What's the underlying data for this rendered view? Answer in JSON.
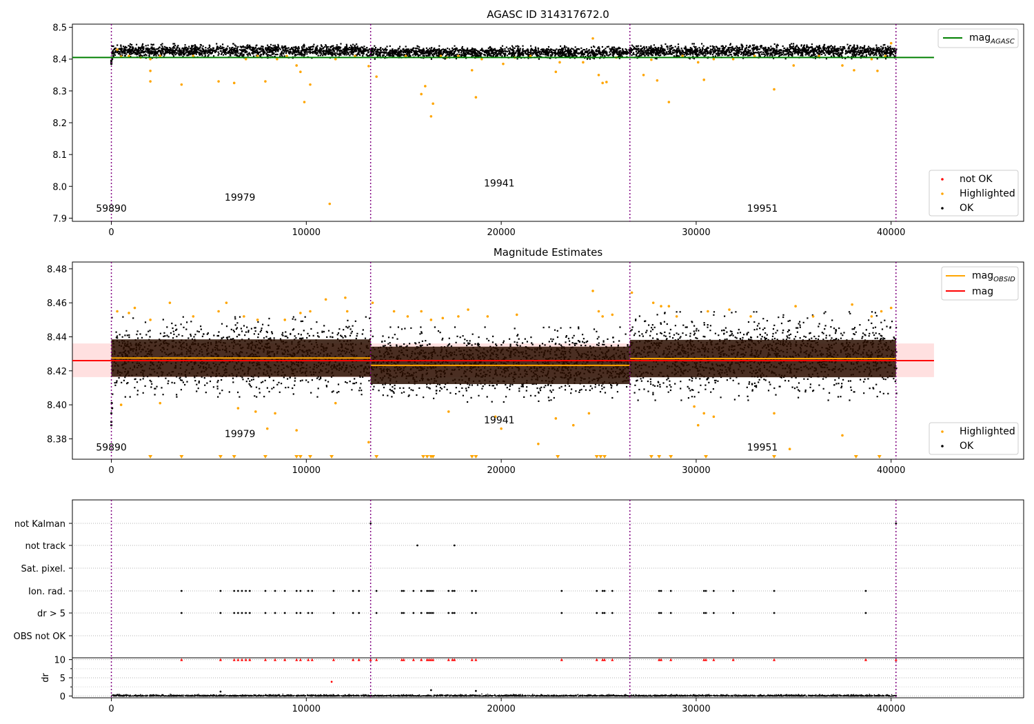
{
  "figure": {
    "background": "#ffffff"
  },
  "chart_data": [
    {
      "type": "scatter",
      "title": "AGASC ID 314317672.0",
      "xlabel": "",
      "ylabel": "",
      "xlim": [
        -2000,
        46800
      ],
      "ylim": [
        7.89,
        8.51
      ],
      "xticks": [
        0,
        10000,
        20000,
        30000,
        40000
      ],
      "yticks": [
        7.9,
        8.0,
        8.1,
        8.2,
        8.3,
        8.4,
        8.5
      ],
      "obsid_boundaries": [
        0,
        13300,
        26600,
        40250
      ],
      "obsid_labels": [
        {
          "x": 0,
          "y": 7.92,
          "text": "59890"
        },
        {
          "x": 6600,
          "y": 7.955,
          "text": "19979"
        },
        {
          "x": 19900,
          "y": 8.0,
          "text": "19941"
        },
        {
          "x": 33400,
          "y": 7.92,
          "text": "19951"
        }
      ],
      "lines": [
        {
          "name": "mag",
          "sub": "AGASC",
          "y": 8.405,
          "x": [
            -2000,
            42200
          ],
          "color": "#008000"
        }
      ],
      "bands": [
        {
          "x": [
            0,
            13300
          ],
          "y": [
            8.405,
            8.45
          ]
        },
        {
          "x": [
            13300,
            26600
          ],
          "y": [
            8.402,
            8.443
          ]
        },
        {
          "x": [
            26600,
            40250
          ],
          "y": [
            8.403,
            8.45
          ]
        }
      ],
      "highlighted_points": [
        [
          300,
          8.43
        ],
        [
          500,
          8.408
        ],
        [
          900,
          8.41
        ],
        [
          1500,
          8.405
        ],
        [
          2000,
          8.4
        ],
        [
          2000,
          8.33
        ],
        [
          2000,
          8.363
        ],
        [
          2500,
          8.41
        ],
        [
          3600,
          8.32
        ],
        [
          4200,
          8.41
        ],
        [
          5500,
          8.33
        ],
        [
          6300,
          8.325
        ],
        [
          6900,
          8.4
        ],
        [
          7500,
          8.41
        ],
        [
          7900,
          8.33
        ],
        [
          8500,
          8.4
        ],
        [
          9000,
          8.41
        ],
        [
          9500,
          8.38
        ],
        [
          9700,
          8.36
        ],
        [
          9900,
          8.265
        ],
        [
          10200,
          8.32
        ],
        [
          11200,
          7.945
        ],
        [
          11500,
          8.4
        ],
        [
          12500,
          8.41
        ],
        [
          13200,
          8.378
        ],
        [
          13600,
          8.345
        ],
        [
          15100,
          8.41
        ],
        [
          15900,
          8.29
        ],
        [
          16100,
          8.315
        ],
        [
          16400,
          8.22
        ],
        [
          16500,
          8.26
        ],
        [
          16900,
          8.41
        ],
        [
          17200,
          8.405
        ],
        [
          17800,
          8.41
        ],
        [
          18500,
          8.365
        ],
        [
          18700,
          8.28
        ],
        [
          19000,
          8.4
        ],
        [
          20100,
          8.385
        ],
        [
          20700,
          8.405
        ],
        [
          21500,
          8.41
        ],
        [
          22800,
          8.36
        ],
        [
          23000,
          8.39
        ],
        [
          24200,
          8.39
        ],
        [
          24700,
          8.465
        ],
        [
          25000,
          8.35
        ],
        [
          25200,
          8.325
        ],
        [
          25400,
          8.328
        ],
        [
          25900,
          8.405
        ],
        [
          27300,
          8.35
        ],
        [
          27700,
          8.398
        ],
        [
          28000,
          8.333
        ],
        [
          28600,
          8.265
        ],
        [
          29300,
          8.41
        ],
        [
          30100,
          8.39
        ],
        [
          30400,
          8.335
        ],
        [
          30900,
          8.4
        ],
        [
          31900,
          8.4
        ],
        [
          33000,
          8.41
        ],
        [
          34000,
          8.305
        ],
        [
          35000,
          8.38
        ],
        [
          36300,
          8.41
        ],
        [
          37500,
          8.38
        ],
        [
          38100,
          8.365
        ],
        [
          39000,
          8.4
        ],
        [
          39300,
          8.363
        ],
        [
          39700,
          8.41
        ],
        [
          40000,
          8.45
        ]
      ],
      "legend": [
        {
          "label": "not OK",
          "color": "#ff0000",
          "marker": "point"
        },
        {
          "label": "Highlighted",
          "color": "#ffa500",
          "marker": "point"
        },
        {
          "label": "OK",
          "color": "#000000",
          "marker": "point"
        }
      ]
    },
    {
      "type": "scatter",
      "title": "Magnitude Estimates",
      "xlabel": "",
      "ylabel": "",
      "xlim": [
        -2000,
        46800
      ],
      "ylim": [
        8.368,
        8.484
      ],
      "xticks": [
        0,
        10000,
        20000,
        30000,
        40000
      ],
      "yticks": [
        8.38,
        8.4,
        8.42,
        8.44,
        8.46,
        8.48
      ],
      "obsid_boundaries": [
        0,
        13300,
        26600,
        40250
      ],
      "obsid_labels": [
        {
          "x": 0,
          "y": 8.373,
          "text": "59890"
        },
        {
          "x": 6600,
          "y": 8.381,
          "text": "19979"
        },
        {
          "x": 19900,
          "y": 8.389,
          "text": "19941"
        },
        {
          "x": 33400,
          "y": 8.373,
          "text": "19951"
        }
      ],
      "overall_mag": {
        "name": "mag",
        "y": 8.426,
        "band": [
          8.4163,
          8.4361
        ],
        "x": [
          -2000,
          42200
        ],
        "color": "#ff0000"
      },
      "obsid_mag": {
        "name": "mag",
        "sub": "OBSID",
        "color": "#ffa500",
        "segments": [
          {
            "x": [
              0,
              13300
            ],
            "y": 8.4275
          },
          {
            "x": [
              13300,
              26600
            ],
            "y": 8.4232
          },
          {
            "x": [
              26600,
              40250
            ],
            "y": 8.4272
          }
        ]
      },
      "bands": [
        {
          "x": [
            0,
            13300
          ],
          "y": [
            8.405,
            8.452
          ]
        },
        {
          "x": [
            13300,
            26600
          ],
          "y": [
            8.402,
            8.446
          ]
        },
        {
          "x": [
            26600,
            40250
          ],
          "y": [
            8.403,
            8.455
          ]
        }
      ],
      "highlighted_points": [
        [
          300,
          8.455
        ],
        [
          500,
          8.4
        ],
        [
          900,
          8.454
        ],
        [
          1200,
          8.457
        ],
        [
          2000,
          8.45
        ],
        [
          2500,
          8.401
        ],
        [
          3000,
          8.46
        ],
        [
          4200,
          8.452
        ],
        [
          5500,
          8.455
        ],
        [
          5900,
          8.46
        ],
        [
          6500,
          8.398
        ],
        [
          6800,
          8.452
        ],
        [
          7400,
          8.396
        ],
        [
          7500,
          8.45
        ],
        [
          8000,
          8.386
        ],
        [
          8400,
          8.395
        ],
        [
          8900,
          8.45
        ],
        [
          9500,
          8.385
        ],
        [
          9700,
          8.454
        ],
        [
          10200,
          8.455
        ],
        [
          11000,
          8.462
        ],
        [
          11500,
          8.401
        ],
        [
          12000,
          8.463
        ],
        [
          12100,
          8.455
        ],
        [
          13200,
          8.378
        ],
        [
          13400,
          8.46
        ],
        [
          14500,
          8.455
        ],
        [
          15200,
          8.452
        ],
        [
          15900,
          8.455
        ],
        [
          16400,
          8.45
        ],
        [
          17000,
          8.451
        ],
        [
          17800,
          8.452
        ],
        [
          17300,
          8.396
        ],
        [
          18300,
          8.456
        ],
        [
          19300,
          8.452
        ],
        [
          19700,
          8.393
        ],
        [
          20000,
          8.386
        ],
        [
          20800,
          8.453
        ],
        [
          21900,
          8.377
        ],
        [
          22800,
          8.392
        ],
        [
          23700,
          8.388
        ],
        [
          24500,
          8.395
        ],
        [
          24700,
          8.467
        ],
        [
          25000,
          8.455
        ],
        [
          25200,
          8.452
        ],
        [
          25700,
          8.453
        ],
        [
          26700,
          8.466
        ],
        [
          27800,
          8.46
        ],
        [
          28200,
          8.458
        ],
        [
          28600,
          8.458
        ],
        [
          29000,
          8.452
        ],
        [
          29900,
          8.399
        ],
        [
          30100,
          8.388
        ],
        [
          30400,
          8.395
        ],
        [
          30600,
          8.455
        ],
        [
          30900,
          8.393
        ],
        [
          31700,
          8.456
        ],
        [
          32800,
          8.452
        ],
        [
          34000,
          8.395
        ],
        [
          34800,
          8.374
        ],
        [
          35100,
          8.458
        ],
        [
          36000,
          8.452
        ],
        [
          37500,
          8.382
        ],
        [
          38000,
          8.459
        ],
        [
          39000,
          8.452
        ],
        [
          39500,
          8.455
        ],
        [
          40000,
          8.457
        ]
      ],
      "lower_limit_markers": [
        2000,
        3600,
        5600,
        6300,
        7900,
        9500,
        9700,
        10200,
        11300,
        13600,
        16000,
        16200,
        16400,
        16500,
        18500,
        18700,
        22900,
        24900,
        25100,
        25300,
        27700,
        28100,
        28700,
        30500,
        34000,
        38200,
        39400
      ],
      "legend": [
        {
          "label": "Highlighted",
          "color": "#ffa500",
          "marker": "point"
        },
        {
          "label": "OK",
          "color": "#000000",
          "marker": "point"
        }
      ]
    },
    {
      "type": "scatter",
      "title": "",
      "xlabel": "",
      "ylabel": "",
      "xlim": [
        -2000,
        46800
      ],
      "categories": [
        "not Kalman",
        "not track",
        "Sat. pixel.",
        "Ion. rad.",
        "dr > 5",
        "OBS not OK"
      ],
      "obsid_boundaries": [
        0,
        13300,
        26600,
        40250
      ],
      "flags": {
        "not Kalman": [
          13300,
          40250
        ],
        "not track": [
          15700,
          17600
        ],
        "Sat. pixel.": [],
        "Ion. rad.": [
          3600,
          5600,
          6300,
          6500,
          6700,
          6900,
          7100,
          7900,
          8400,
          8900,
          9500,
          9700,
          10100,
          10300,
          11400,
          12400,
          12700,
          13600,
          14900,
          15000,
          15500,
          15900,
          16200,
          16300,
          16400,
          16500,
          17300,
          17500,
          17600,
          18500,
          18700,
          23100,
          24900,
          25200,
          25300,
          25700,
          28100,
          28200,
          28700,
          30400,
          30500,
          30900,
          31900,
          34000,
          38700
        ],
        "dr > 5": [
          3600,
          5600,
          6300,
          6500,
          6700,
          6900,
          7100,
          7900,
          8400,
          8900,
          9500,
          9700,
          10100,
          10300,
          11400,
          12400,
          12700,
          13600,
          14900,
          15000,
          15500,
          15900,
          16200,
          16300,
          16400,
          16500,
          17300,
          17500,
          17600,
          18500,
          18700,
          23100,
          24900,
          25200,
          25300,
          25700,
          28100,
          28200,
          28700,
          30400,
          30500,
          30900,
          31900,
          34000,
          38700
        ],
        "OBS not OK": []
      }
    },
    {
      "type": "scatter",
      "title": "",
      "xlabel": "",
      "ylabel": "dr",
      "xlim": [
        -2000,
        46800
      ],
      "ylim": [
        -0.5,
        10.5
      ],
      "yticks": [
        0,
        5,
        10
      ],
      "xticks": [
        0,
        10000,
        20000,
        30000,
        40000
      ],
      "obsid_boundaries": [
        0,
        13300,
        26600,
        40250
      ],
      "clipped_at": 10,
      "clipped_x": [
        3600,
        5600,
        6300,
        6500,
        6700,
        6900,
        7100,
        7900,
        8400,
        8900,
        9500,
        9700,
        10100,
        10300,
        11400,
        12400,
        12700,
        13300,
        13600,
        14900,
        15000,
        15500,
        15900,
        16200,
        16300,
        16400,
        16500,
        17300,
        17500,
        17600,
        18500,
        18700,
        23100,
        24900,
        25200,
        25300,
        25700,
        28100,
        28200,
        28700,
        30400,
        30500,
        30900,
        31900,
        34000,
        38700,
        40250
      ],
      "outliers": [
        [
          11300,
          3.9
        ],
        [
          16400,
          1.6
        ],
        [
          18700,
          1.4
        ],
        [
          5600,
          1.2
        ]
      ]
    }
  ]
}
